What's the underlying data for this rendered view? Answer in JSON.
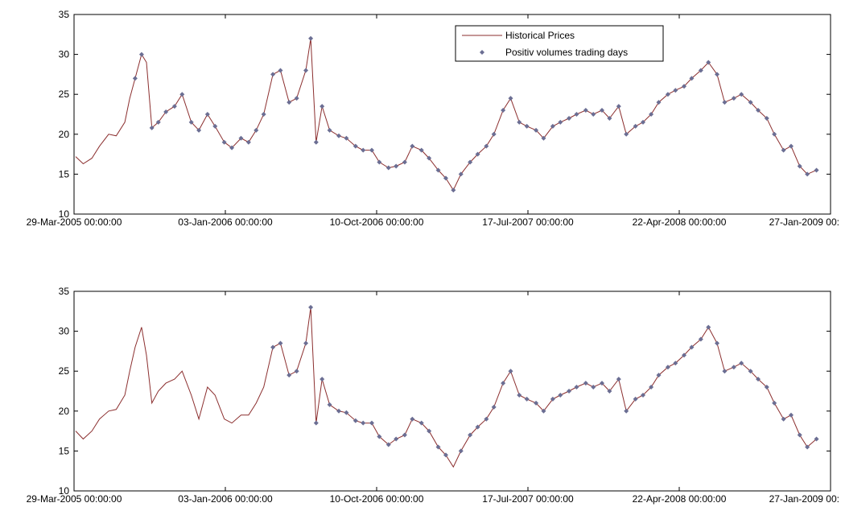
{
  "colors": {
    "price_line": "#8b2e2e",
    "marker": "#6b6e93",
    "axes": "#000000",
    "background": "#ffffff"
  },
  "legend": {
    "line_label": "Historical Prices",
    "marker_label": "Positiv volumes trading days"
  },
  "chart_data": [
    {
      "type": "line",
      "title": "",
      "xlabel": "",
      "ylabel": "",
      "ylim": [
        10,
        35
      ],
      "xlim": [
        "29-Mar-2005",
        "27-Jan-2009"
      ],
      "yticks": [
        10,
        15,
        20,
        25,
        30,
        35
      ],
      "xtick_labels": [
        "29-Mar-2005 00:00:00",
        "03-Jan-2006 00:00:00",
        "10-Oct-2006 00:00:00",
        "17-Jul-2007 00:00:00",
        "22-Apr-2008 00:00:00",
        "27-Jan-2009 00:00:00"
      ],
      "grid": false,
      "legend_position": "top-right",
      "series": [
        {
          "name": "Historical Prices",
          "kind": "line",
          "x": [
            "2005-04-01",
            "2005-04-15",
            "2005-05-01",
            "2005-05-15",
            "2005-06-01",
            "2005-06-15",
            "2005-07-01",
            "2005-07-10",
            "2005-07-20",
            "2005-08-01",
            "2005-08-10",
            "2005-08-20",
            "2005-09-01",
            "2005-09-15",
            "2005-10-01",
            "2005-10-15",
            "2005-11-01",
            "2005-11-15",
            "2005-12-01",
            "2005-12-15",
            "2006-01-01",
            "2006-01-15",
            "2006-02-01",
            "2006-02-15",
            "2006-03-01",
            "2006-03-15",
            "2006-04-01",
            "2006-04-15",
            "2006-05-01",
            "2006-05-15",
            "2006-06-01",
            "2006-06-10",
            "2006-06-20",
            "2006-07-01",
            "2006-07-15",
            "2006-08-01",
            "2006-08-15",
            "2006-09-01",
            "2006-09-15",
            "2006-10-01",
            "2006-10-15",
            "2006-11-01",
            "2006-11-15",
            "2006-12-01",
            "2006-12-15",
            "2007-01-01",
            "2007-01-15",
            "2007-02-01",
            "2007-02-15",
            "2007-03-01",
            "2007-03-15",
            "2007-04-01",
            "2007-04-15",
            "2007-05-01",
            "2007-05-15",
            "2007-06-01",
            "2007-06-15",
            "2007-07-01",
            "2007-07-15",
            "2007-08-01",
            "2007-08-15",
            "2007-09-01",
            "2007-09-15",
            "2007-10-01",
            "2007-10-15",
            "2007-11-01",
            "2007-11-15",
            "2007-12-01",
            "2007-12-15",
            "2008-01-01",
            "2008-01-15",
            "2008-02-01",
            "2008-02-15",
            "2008-03-01",
            "2008-03-15",
            "2008-04-01",
            "2008-04-15",
            "2008-05-01",
            "2008-05-15",
            "2008-06-01",
            "2008-06-15",
            "2008-07-01",
            "2008-07-15",
            "2008-08-01",
            "2008-08-15",
            "2008-09-01",
            "2008-09-15",
            "2008-10-01",
            "2008-10-15",
            "2008-11-01",
            "2008-11-15",
            "2008-12-01",
            "2008-12-15",
            "2009-01-01"
          ],
          "y": [
            17.2,
            16.3,
            17.0,
            18.5,
            20.0,
            19.8,
            21.5,
            24.5,
            27.0,
            30.0,
            29.0,
            20.8,
            21.5,
            22.8,
            23.5,
            25.0,
            21.5,
            20.5,
            22.5,
            21.0,
            19.0,
            18.3,
            19.5,
            19.0,
            20.5,
            22.5,
            27.5,
            28.0,
            24.0,
            24.5,
            28.0,
            32.0,
            19.0,
            23.5,
            20.5,
            19.8,
            19.5,
            18.5,
            18.0,
            18.0,
            16.5,
            15.8,
            16.0,
            16.5,
            18.5,
            18.0,
            17.0,
            15.5,
            14.5,
            13.0,
            15.0,
            16.5,
            17.5,
            18.5,
            20.0,
            23.0,
            24.5,
            21.5,
            21.0,
            20.5,
            19.5,
            21.0,
            21.5,
            22.0,
            22.5,
            23.0,
            22.5,
            23.0,
            22.0,
            23.5,
            20.0,
            21.0,
            21.5,
            22.5,
            24.0,
            25.0,
            25.5,
            26.0,
            27.0,
            28.0,
            29.0,
            27.5,
            24.0,
            24.5,
            25.0,
            24.0,
            23.0,
            22.0,
            20.0,
            18.0,
            18.5,
            16.0,
            15.0,
            15.5
          ]
        },
        {
          "name": "Positiv volumes trading days",
          "kind": "marker",
          "x": [
            "2005-07-20",
            "2005-08-01",
            "2005-08-20",
            "2005-09-01",
            "2005-09-15",
            "2005-10-01",
            "2005-10-15",
            "2005-11-01",
            "2005-11-15",
            "2005-12-01",
            "2005-12-15",
            "2006-01-01",
            "2006-01-15",
            "2006-02-01",
            "2006-02-15",
            "2006-03-01",
            "2006-03-15",
            "2006-04-01",
            "2006-04-15",
            "2006-05-01",
            "2006-05-15",
            "2006-06-01",
            "2006-06-10",
            "2006-06-20",
            "2006-07-01",
            "2006-07-15",
            "2006-08-01",
            "2006-08-15",
            "2006-09-01",
            "2006-09-15",
            "2006-10-01",
            "2006-10-15",
            "2006-11-01",
            "2006-11-15",
            "2006-12-01",
            "2006-12-15",
            "2007-01-01",
            "2007-01-15",
            "2007-02-01",
            "2007-02-15",
            "2007-03-01",
            "2007-03-15",
            "2007-04-01",
            "2007-04-15",
            "2007-05-01",
            "2007-05-15",
            "2007-06-01",
            "2007-06-15",
            "2007-07-01",
            "2007-07-15",
            "2007-08-01",
            "2007-08-15",
            "2007-09-01",
            "2007-09-15",
            "2007-10-01",
            "2007-10-15",
            "2007-11-01",
            "2007-11-15",
            "2007-12-01",
            "2007-12-15",
            "2008-01-01",
            "2008-01-15",
            "2008-02-01",
            "2008-02-15",
            "2008-03-01",
            "2008-03-15",
            "2008-04-01",
            "2008-04-15",
            "2008-05-01",
            "2008-05-15",
            "2008-06-01",
            "2008-06-15",
            "2008-07-01",
            "2008-07-15",
            "2008-08-01",
            "2008-08-15",
            "2008-09-01",
            "2008-09-15",
            "2008-10-01",
            "2008-10-15",
            "2008-11-01",
            "2008-11-15",
            "2008-12-01",
            "2008-12-15",
            "2009-01-01"
          ],
          "y": [
            27.0,
            30.0,
            20.8,
            21.5,
            22.8,
            23.5,
            25.0,
            21.5,
            20.5,
            22.5,
            21.0,
            19.0,
            18.3,
            19.5,
            19.0,
            20.5,
            22.5,
            27.5,
            28.0,
            24.0,
            24.5,
            28.0,
            32.0,
            19.0,
            23.5,
            20.5,
            19.8,
            19.5,
            18.5,
            18.0,
            18.0,
            16.5,
            15.8,
            16.0,
            16.5,
            18.5,
            18.0,
            17.0,
            15.5,
            14.5,
            13.0,
            15.0,
            16.5,
            17.5,
            18.5,
            20.0,
            23.0,
            24.5,
            21.5,
            21.0,
            20.5,
            19.5,
            21.0,
            21.5,
            22.0,
            22.5,
            23.0,
            22.5,
            23.0,
            22.0,
            23.5,
            20.0,
            21.0,
            21.5,
            22.5,
            24.0,
            25.0,
            25.5,
            26.0,
            27.0,
            28.0,
            29.0,
            27.5,
            24.0,
            24.5,
            25.0,
            24.0,
            23.0,
            22.0,
            20.0,
            18.0,
            18.5,
            16.0,
            15.0,
            15.5
          ]
        }
      ]
    },
    {
      "type": "line",
      "title": "",
      "xlabel": "",
      "ylabel": "",
      "ylim": [
        10,
        35
      ],
      "xlim": [
        "29-Mar-2005",
        "27-Jan-2009"
      ],
      "yticks": [
        10,
        15,
        20,
        25,
        30,
        35
      ],
      "xtick_labels": [
        "29-Mar-2005 00:00:00",
        "03-Jan-2006 00:00:00",
        "10-Oct-2006 00:00:00",
        "17-Jul-2007 00:00:00",
        "22-Apr-2008 00:00:00",
        "27-Jan-2009 00:00:00"
      ],
      "grid": false,
      "series": [
        {
          "name": "Historical Prices",
          "kind": "line",
          "x": [
            "2005-04-01",
            "2005-04-15",
            "2005-05-01",
            "2005-05-15",
            "2005-06-01",
            "2005-06-15",
            "2005-07-01",
            "2005-07-10",
            "2005-07-20",
            "2005-08-01",
            "2005-08-10",
            "2005-08-20",
            "2005-09-01",
            "2005-09-15",
            "2005-10-01",
            "2005-10-15",
            "2005-11-01",
            "2005-11-15",
            "2005-12-01",
            "2005-12-15",
            "2006-01-01",
            "2006-01-15",
            "2006-02-01",
            "2006-02-15",
            "2006-03-01",
            "2006-03-15",
            "2006-04-01",
            "2006-04-15",
            "2006-05-01",
            "2006-05-15",
            "2006-06-01",
            "2006-06-10",
            "2006-06-20",
            "2006-07-01",
            "2006-07-15",
            "2006-08-01",
            "2006-08-15",
            "2006-09-01",
            "2006-09-15",
            "2006-10-01",
            "2006-10-15",
            "2006-11-01",
            "2006-11-15",
            "2006-12-01",
            "2006-12-15",
            "2007-01-01",
            "2007-01-15",
            "2007-02-01",
            "2007-02-15",
            "2007-03-01",
            "2007-03-15",
            "2007-04-01",
            "2007-04-15",
            "2007-05-01",
            "2007-05-15",
            "2007-06-01",
            "2007-06-15",
            "2007-07-01",
            "2007-07-15",
            "2007-08-01",
            "2007-08-15",
            "2007-09-01",
            "2007-09-15",
            "2007-10-01",
            "2007-10-15",
            "2007-11-01",
            "2007-11-15",
            "2007-12-01",
            "2007-12-15",
            "2008-01-01",
            "2008-01-15",
            "2008-02-01",
            "2008-02-15",
            "2008-03-01",
            "2008-03-15",
            "2008-04-01",
            "2008-04-15",
            "2008-05-01",
            "2008-05-15",
            "2008-06-01",
            "2008-06-15",
            "2008-07-01",
            "2008-07-15",
            "2008-08-01",
            "2008-08-15",
            "2008-09-01",
            "2008-09-15",
            "2008-10-01",
            "2008-10-15",
            "2008-11-01",
            "2008-11-15",
            "2008-12-01",
            "2008-12-15",
            "2009-01-01"
          ],
          "y": [
            17.5,
            16.5,
            17.5,
            19.0,
            20.0,
            20.2,
            22.0,
            25.0,
            28.0,
            30.5,
            27.0,
            21.0,
            22.5,
            23.5,
            24.0,
            25.0,
            22.0,
            19.0,
            23.0,
            22.0,
            19.0,
            18.5,
            19.5,
            19.5,
            21.0,
            23.0,
            28.0,
            28.5,
            24.5,
            25.0,
            28.5,
            33.0,
            18.5,
            24.0,
            20.8,
            20.0,
            19.8,
            18.8,
            18.5,
            18.5,
            16.8,
            15.8,
            16.5,
            17.0,
            19.0,
            18.5,
            17.5,
            15.5,
            14.5,
            13.0,
            15.0,
            17.0,
            18.0,
            19.0,
            20.5,
            23.5,
            25.0,
            22.0,
            21.5,
            21.0,
            20.0,
            21.5,
            22.0,
            22.5,
            23.0,
            23.5,
            23.0,
            23.5,
            22.5,
            24.0,
            20.0,
            21.5,
            22.0,
            23.0,
            24.5,
            25.5,
            26.0,
            27.0,
            28.0,
            29.0,
            30.5,
            28.5,
            25.0,
            25.5,
            26.0,
            25.0,
            24.0,
            23.0,
            21.0,
            19.0,
            19.5,
            17.0,
            15.5,
            16.5
          ]
        },
        {
          "name": "Positiv volumes trading days",
          "kind": "marker",
          "x": [
            "2006-04-01",
            "2006-04-15",
            "2006-05-01",
            "2006-05-15",
            "2006-06-01",
            "2006-06-10",
            "2006-06-20",
            "2006-07-01",
            "2006-07-15",
            "2006-08-01",
            "2006-08-15",
            "2006-09-01",
            "2006-09-15",
            "2006-10-01",
            "2006-10-15",
            "2006-11-01",
            "2006-11-15",
            "2006-12-01",
            "2006-12-15",
            "2007-01-01",
            "2007-01-15",
            "2007-02-01",
            "2007-02-15",
            "2007-03-15",
            "2007-04-01",
            "2007-04-15",
            "2007-05-01",
            "2007-05-15",
            "2007-06-01",
            "2007-06-15",
            "2007-07-01",
            "2007-07-15",
            "2007-08-01",
            "2007-08-15",
            "2007-09-01",
            "2007-09-15",
            "2007-10-01",
            "2007-10-15",
            "2007-11-01",
            "2007-11-15",
            "2007-12-01",
            "2007-12-15",
            "2008-01-01",
            "2008-01-15",
            "2008-02-01",
            "2008-02-15",
            "2008-03-01",
            "2008-03-15",
            "2008-04-01",
            "2008-04-15",
            "2008-05-01",
            "2008-05-15",
            "2008-06-01",
            "2008-06-15",
            "2008-07-01",
            "2008-07-15",
            "2008-08-01",
            "2008-08-15",
            "2008-09-01",
            "2008-09-15",
            "2008-10-01",
            "2008-10-15",
            "2008-11-01",
            "2008-11-15",
            "2008-12-01",
            "2008-12-15",
            "2009-01-01"
          ],
          "y": [
            28.0,
            28.5,
            24.5,
            25.0,
            28.5,
            33.0,
            18.5,
            24.0,
            20.8,
            20.0,
            19.8,
            18.8,
            18.5,
            18.5,
            16.8,
            15.8,
            16.5,
            17.0,
            19.0,
            18.5,
            17.5,
            15.5,
            14.5,
            15.0,
            17.0,
            18.0,
            19.0,
            20.5,
            23.5,
            25.0,
            22.0,
            21.5,
            21.0,
            20.0,
            21.5,
            22.0,
            22.5,
            23.0,
            23.5,
            23.0,
            23.5,
            22.5,
            24.0,
            20.0,
            21.5,
            22.0,
            23.0,
            24.5,
            25.5,
            26.0,
            27.0,
            28.0,
            29.0,
            30.5,
            28.5,
            25.0,
            25.5,
            26.0,
            25.0,
            24.0,
            23.0,
            21.0,
            19.0,
            19.5,
            17.0,
            15.5,
            16.5
          ]
        }
      ]
    }
  ]
}
